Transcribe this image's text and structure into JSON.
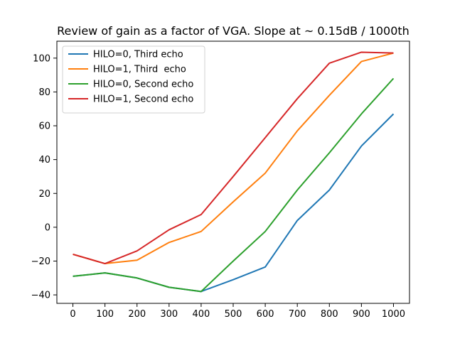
{
  "chart_data": {
    "type": "line",
    "title": "Review of gain as a factor of VGA. Slope at ~ 0.15dB / 1000th",
    "xlabel": "",
    "ylabel": "",
    "x": [
      0,
      100,
      200,
      300,
      400,
      500,
      600,
      700,
      800,
      900,
      1000
    ],
    "x_tick_labels": [
      "0",
      "100",
      "200",
      "300",
      "400",
      "500",
      "600",
      "700",
      "800",
      "900",
      "1000"
    ],
    "y_ticks": [
      -40,
      -20,
      0,
      20,
      40,
      60,
      80,
      100
    ],
    "y_tick_labels": [
      "−40",
      "−20",
      "0",
      "20",
      "40",
      "60",
      "80",
      "100"
    ],
    "xlim": [
      -50,
      1050
    ],
    "ylim": [
      -45,
      110
    ],
    "grid": false,
    "legend_position": "top-left",
    "series": [
      {
        "name": "HILO=0, Third echo",
        "color": "#1f77b4",
        "values": [
          -29,
          -27,
          -30,
          -35.5,
          -38,
          -31,
          -23.5,
          4,
          22,
          48,
          67
        ]
      },
      {
        "name": "HILO=1, Third  echo",
        "color": "#ff7f0e",
        "values": [
          -16,
          -21.5,
          -19.5,
          -9,
          -2.5,
          15,
          32,
          57,
          78,
          98,
          103
        ]
      },
      {
        "name": "HILO=0, Second echo",
        "color": "#2ca02c",
        "values": [
          -29,
          -27,
          -30,
          -35.5,
          -38,
          -20,
          -2.5,
          22,
          44,
          67,
          88
        ]
      },
      {
        "name": "HILO=1, Second echo",
        "color": "#d62728",
        "values": [
          -16,
          -21.5,
          -14,
          -1.5,
          7.5,
          30,
          53,
          76,
          97,
          103.5,
          103
        ]
      }
    ]
  }
}
